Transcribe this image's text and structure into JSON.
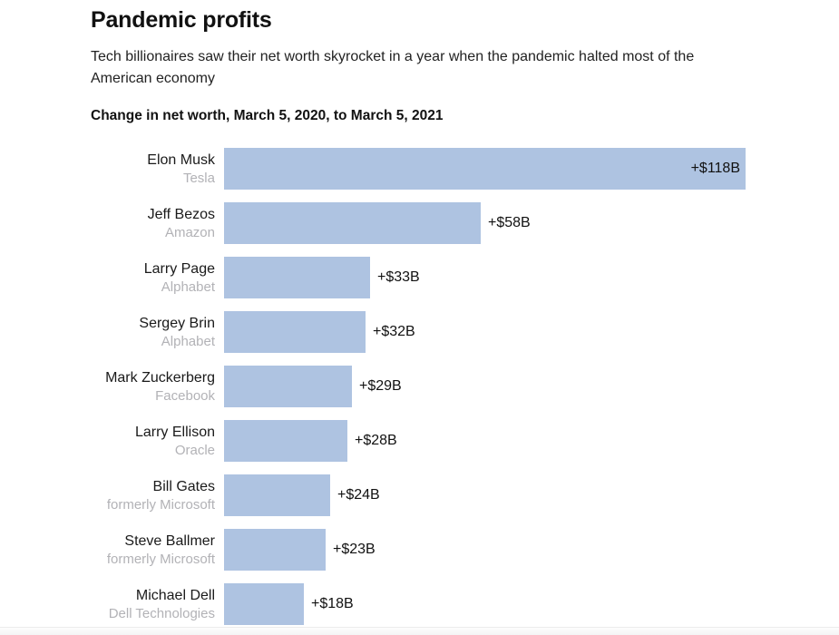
{
  "page": {
    "title": "Pandemic profits",
    "subtitle": "Tech billionaires saw their net worth skyrocket in a year when the pandemic halted most of the American economy",
    "section_label": "Change in net worth, March 5, 2020, to March 5, 2021"
  },
  "colors": {
    "bar": "#aec3e1",
    "name_text": "#1a1a1a",
    "company_text": "#b2b2b6",
    "value_text": "#111111"
  },
  "chart_data": {
    "type": "bar",
    "orientation": "horizontal",
    "title": "Pandemic profits",
    "subtitle": "Tech billionaires saw their net worth skyrocket in a year when the pandemic halted most of the American economy",
    "xlabel": "Change in net worth, March 5, 2020, to March 5, 2021",
    "ylabel": "",
    "unit": "USD billions",
    "xlim": [
      0,
      118
    ],
    "grid": false,
    "legend": false,
    "categories": [
      "Elon Musk",
      "Jeff Bezos",
      "Larry Page",
      "Sergey Brin",
      "Mark Zuckerberg",
      "Larry Ellison",
      "Bill Gates",
      "Steve Ballmer",
      "Michael Dell"
    ],
    "values": [
      118,
      58,
      33,
      32,
      29,
      28,
      24,
      23,
      18
    ],
    "bars": [
      {
        "name": "Elon Musk",
        "company": "Tesla",
        "value": 118,
        "label": "+$118B",
        "label_inside": true
      },
      {
        "name": "Jeff Bezos",
        "company": "Amazon",
        "value": 58,
        "label": "+$58B",
        "label_inside": false
      },
      {
        "name": "Larry Page",
        "company": "Alphabet",
        "value": 33,
        "label": "+$33B",
        "label_inside": false
      },
      {
        "name": "Sergey Brin",
        "company": "Alphabet",
        "value": 32,
        "label": "+$32B",
        "label_inside": false
      },
      {
        "name": "Mark Zuckerberg",
        "company": "Facebook",
        "value": 29,
        "label": "+$29B",
        "label_inside": false
      },
      {
        "name": "Larry Ellison",
        "company": "Oracle",
        "value": 28,
        "label": "+$28B",
        "label_inside": false
      },
      {
        "name": "Bill Gates",
        "company": "formerly Microsoft",
        "value": 24,
        "label": "+$24B",
        "label_inside": false
      },
      {
        "name": "Steve Ballmer",
        "company": "formerly Microsoft",
        "value": 23,
        "label": "+$23B",
        "label_inside": false
      },
      {
        "name": "Michael Dell",
        "company": "Dell Technologies",
        "value": 18,
        "label": "+$18B",
        "label_inside": false
      }
    ]
  }
}
